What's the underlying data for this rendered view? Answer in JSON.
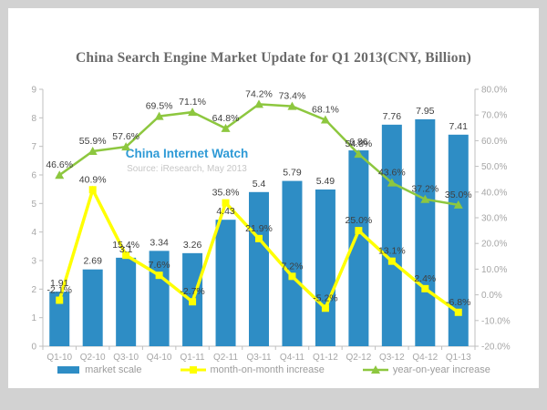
{
  "title": "China Search Engine Market Update for Q1 2013(CNY, Billion)",
  "watermark": {
    "line1": "China Internet Watch",
    "line2": "Source: iResearch, May 2013"
  },
  "colors": {
    "frame": "#d2d2d2",
    "panel": "#ffffff",
    "bar": "#2e8dc5",
    "yellow": "#ffff00",
    "green": "#8dc73f",
    "axis_line": "#bfbfbf",
    "axis_text": "#a6a6a6",
    "label_text": "#3f3f3f",
    "title_text": "#6a6a6a",
    "watermark_blue": "#2e9ad6",
    "watermark_gray": "#c6c6c6"
  },
  "chart_data": {
    "type": "bar",
    "categories": [
      "Q1-10",
      "Q2-10",
      "Q3-10",
      "Q4-10",
      "Q1-11",
      "Q2-11",
      "Q3-11",
      "Q4-11",
      "Q1-12",
      "Q2-12",
      "Q3-12",
      "Q4-12",
      "Q1-13"
    ],
    "series": [
      {
        "name": "market scale",
        "type": "bar",
        "axis": "left",
        "color": "#2e8dc5",
        "values": [
          1.91,
          2.69,
          3.1,
          3.34,
          3.26,
          4.43,
          5.4,
          5.79,
          5.49,
          6.86,
          7.76,
          7.95,
          7.41
        ],
        "labels": [
          "1.91",
          "2.69",
          "3.1",
          "3.34",
          "3.26",
          "4.43",
          "5.4",
          "5.79",
          "5.49",
          "6.86",
          "7.76",
          "7.95",
          "7.41"
        ]
      },
      {
        "name": "month-on-month increase",
        "type": "line",
        "axis": "right",
        "color": "#ffff00",
        "marker": "square",
        "values": [
          -2.1,
          40.9,
          15.4,
          7.6,
          -2.7,
          35.8,
          21.9,
          7.2,
          -5.2,
          25.0,
          13.1,
          2.4,
          -6.8
        ],
        "labels": [
          "-2.1%",
          "40.9%",
          "15.4%",
          "7.6%",
          "-2.7%",
          "35.8%",
          "21.9%",
          "7.2%",
          "-5.2%",
          "25.0%",
          "13.1%",
          "2.4%",
          "-6.8%"
        ]
      },
      {
        "name": "year-on-year increase",
        "type": "line",
        "axis": "right",
        "color": "#8dc73f",
        "marker": "triangle",
        "values": [
          46.6,
          55.9,
          57.6,
          69.5,
          71.1,
          64.8,
          74.2,
          73.4,
          68.1,
          54.8,
          43.6,
          37.2,
          35.0
        ],
        "labels": [
          "46.6%",
          "55.9%",
          "57.6%",
          "69.5%",
          "71.1%",
          "64.8%",
          "74.2%",
          "73.4%",
          "68.1%",
          "54.8%",
          "43.6%",
          "37.2%",
          "35.0%"
        ]
      }
    ],
    "left_axis": {
      "min": 0,
      "max": 9,
      "step": 1,
      "ticks": [
        "9",
        "8",
        "7",
        "6",
        "5",
        "4",
        "3",
        "2",
        "1",
        "0"
      ]
    },
    "right_axis": {
      "min": -20,
      "max": 80,
      "step": 10,
      "ticks": [
        "80.0%",
        "70.0%",
        "60.0%",
        "50.0%",
        "40.0%",
        "30.0%",
        "20.0%",
        "10.0%",
        "0.0%",
        "-10.0%",
        "-20.0%"
      ]
    },
    "grid": false,
    "legend_position": "bottom"
  }
}
